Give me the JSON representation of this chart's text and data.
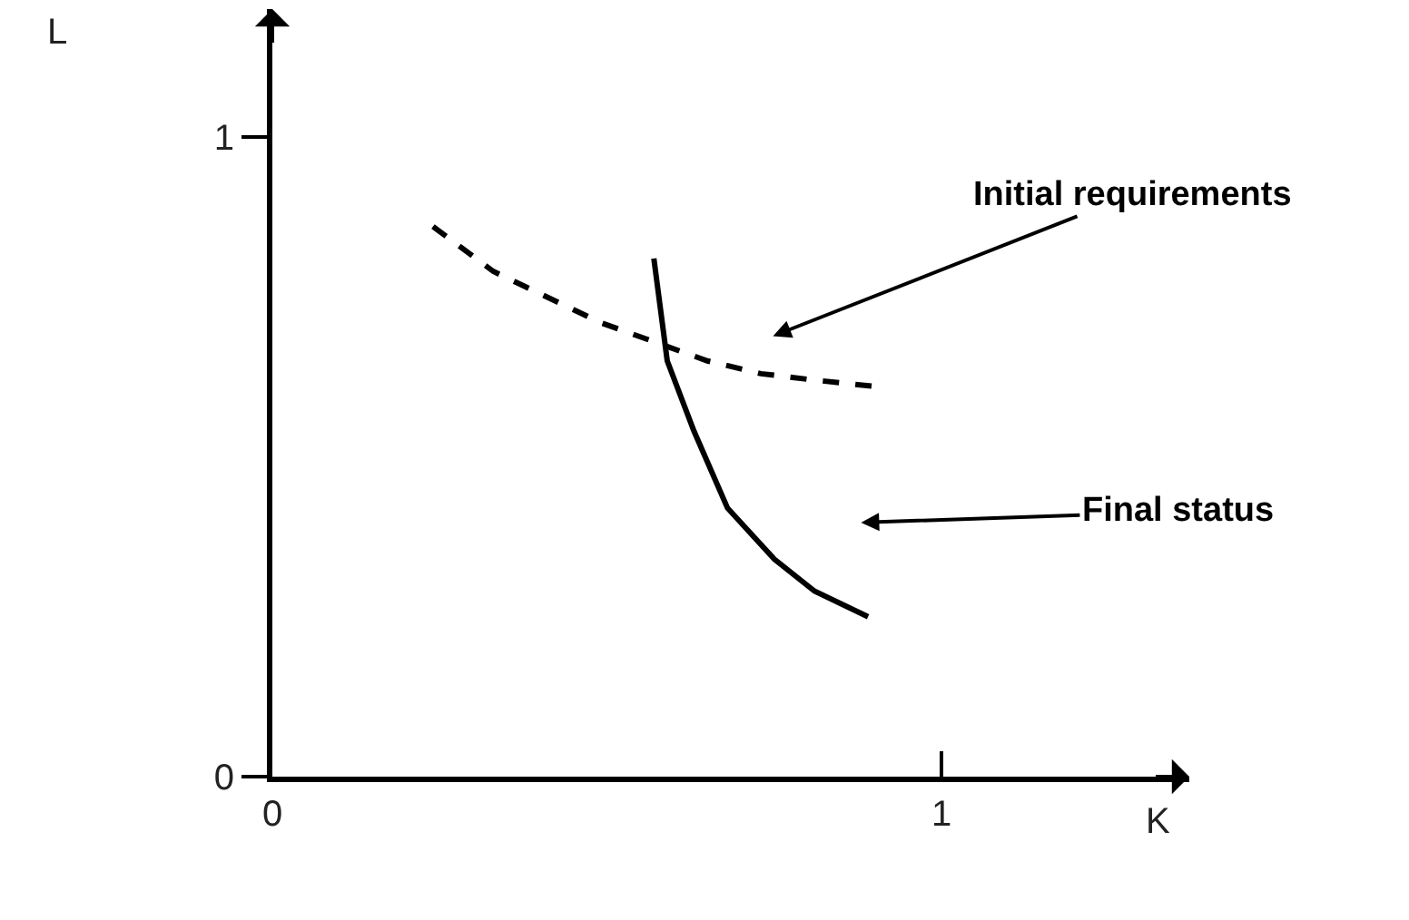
{
  "chart_data": {
    "type": "line",
    "xlabel": "K",
    "ylabel": "L",
    "xlim": [
      0,
      1.37
    ],
    "ylim": [
      0,
      1.2
    ],
    "xticks": [
      0,
      1
    ],
    "yticks": [
      0,
      1
    ],
    "series": [
      {
        "color": "#000000",
        "line_style": "dashed",
        "x": [
          0.24,
          0.33,
          0.41,
          0.49,
          0.57,
          0.65,
          0.73,
          0.81,
          0.9
        ],
        "values": [
          0.86,
          0.79,
          0.75,
          0.71,
          0.68,
          0.65,
          0.63,
          0.62,
          0.61
        ]
      },
      {
        "color": "#000000",
        "line_style": "solid",
        "x": [
          0.57,
          0.59,
          0.63,
          0.68,
          0.75,
          0.81,
          0.89
        ],
        "values": [
          0.81,
          0.65,
          0.54,
          0.42,
          0.34,
          0.29,
          0.25
        ]
      }
    ],
    "annotations": [
      "Initial requirements",
      "Final status"
    ],
    "marker": "none",
    "legend": false
  }
}
